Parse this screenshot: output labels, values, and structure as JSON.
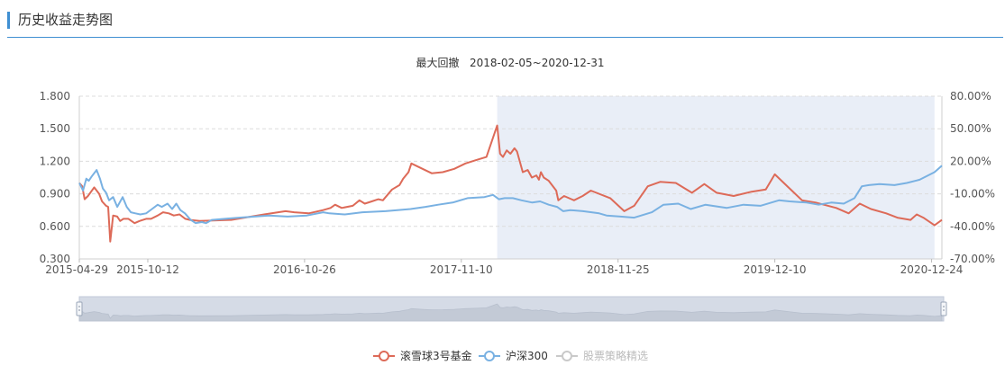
{
  "page": {
    "title": "历史收益走势图"
  },
  "colors": {
    "accent": "#3f8fd2",
    "fund": "#dd6a58",
    "index": "#79b1e2",
    "shade": "#e9eef7",
    "disabled": "#c9c9c9"
  },
  "chart_data": {
    "type": "line",
    "title": "最大回撤   2018-02-05~2020-12-31",
    "drawdown_range": [
      "2018-02-05",
      "2020-12-31"
    ],
    "x_ticks": [
      "2015-04-29",
      "2015-10-12",
      "2016-10-26",
      "2017-11-10",
      "2018-11-25",
      "2019-12-10",
      "2020-12-24"
    ],
    "y_left": {
      "min": 0.3,
      "max": 1.8,
      "ticks": [
        "0.300",
        "0.600",
        "0.900",
        "1.200",
        "1.500",
        "1.800"
      ]
    },
    "y_right": {
      "min": -70,
      "max": 80,
      "ticks": [
        "-70.00%",
        "-40.00%",
        "-10.00%",
        "20.00%",
        "50.00%",
        "80.00%"
      ]
    },
    "grid": true,
    "legend_position": "bottom",
    "series": [
      {
        "name": "滚雪球3号基金",
        "axis": "left",
        "points": [
          [
            "2015-04-29",
            1.0
          ],
          [
            "2015-05-06",
            0.97
          ],
          [
            "2015-05-12",
            0.85
          ],
          [
            "2015-05-20",
            0.88
          ],
          [
            "2015-06-04",
            0.96
          ],
          [
            "2015-06-16",
            0.9
          ],
          [
            "2015-06-23",
            0.83
          ],
          [
            "2015-07-03",
            0.79
          ],
          [
            "2015-07-08",
            0.78
          ],
          [
            "2015-07-13",
            0.46
          ],
          [
            "2015-07-20",
            0.7
          ],
          [
            "2015-07-30",
            0.69
          ],
          [
            "2015-08-06",
            0.65
          ],
          [
            "2015-08-14",
            0.67
          ],
          [
            "2015-08-26",
            0.67
          ],
          [
            "2015-09-10",
            0.63
          ],
          [
            "2015-09-22",
            0.65
          ],
          [
            "2015-10-08",
            0.67
          ],
          [
            "2015-10-20",
            0.67
          ],
          [
            "2015-11-05",
            0.7
          ],
          [
            "2015-11-18",
            0.73
          ],
          [
            "2015-12-02",
            0.72
          ],
          [
            "2015-12-14",
            0.7
          ],
          [
            "2015-12-28",
            0.71
          ],
          [
            "2016-01-11",
            0.67
          ],
          [
            "2016-01-22",
            0.66
          ],
          [
            "2016-02-15",
            0.65
          ],
          [
            "2016-05-01",
            0.66
          ],
          [
            "2016-07-20",
            0.71
          ],
          [
            "2016-09-10",
            0.74
          ],
          [
            "2016-10-01",
            0.73
          ],
          [
            "2016-11-05",
            0.72
          ],
          [
            "2016-12-10",
            0.75
          ],
          [
            "2016-12-28",
            0.77
          ],
          [
            "2017-01-08",
            0.8
          ],
          [
            "2017-01-24",
            0.77
          ],
          [
            "2017-02-20",
            0.79
          ],
          [
            "2017-03-08",
            0.84
          ],
          [
            "2017-03-21",
            0.81
          ],
          [
            "2017-04-07",
            0.83
          ],
          [
            "2017-04-23",
            0.85
          ],
          [
            "2017-05-04",
            0.84
          ],
          [
            "2017-05-26",
            0.94
          ],
          [
            "2017-06-13",
            0.98
          ],
          [
            "2017-06-22",
            1.04
          ],
          [
            "2017-07-05",
            1.1
          ],
          [
            "2017-07-12",
            1.18
          ],
          [
            "2017-08-08",
            1.13
          ],
          [
            "2017-08-30",
            1.09
          ],
          [
            "2017-09-26",
            1.1
          ],
          [
            "2017-10-24",
            1.13
          ],
          [
            "2017-11-20",
            1.18
          ],
          [
            "2017-12-15",
            1.21
          ],
          [
            "2018-01-10",
            1.24
          ],
          [
            "2018-02-05",
            1.53
          ],
          [
            "2018-02-12",
            1.27
          ],
          [
            "2018-02-19",
            1.24
          ],
          [
            "2018-02-28",
            1.3
          ],
          [
            "2018-03-09",
            1.27
          ],
          [
            "2018-03-19",
            1.32
          ],
          [
            "2018-03-25",
            1.29
          ],
          [
            "2018-04-08",
            1.1
          ],
          [
            "2018-04-20",
            1.12
          ],
          [
            "2018-04-30",
            1.05
          ],
          [
            "2018-05-11",
            1.07
          ],
          [
            "2018-05-17",
            1.03
          ],
          [
            "2018-05-22",
            1.1
          ],
          [
            "2018-05-29",
            1.05
          ],
          [
            "2018-06-10",
            1.02
          ],
          [
            "2018-06-28",
            0.93
          ],
          [
            "2018-07-03",
            0.84
          ],
          [
            "2018-07-17",
            0.88
          ],
          [
            "2018-08-10",
            0.84
          ],
          [
            "2018-08-31",
            0.88
          ],
          [
            "2018-09-20",
            0.93
          ],
          [
            "2018-11-06",
            0.86
          ],
          [
            "2018-12-10",
            0.74
          ],
          [
            "2019-01-03",
            0.79
          ],
          [
            "2019-02-05",
            0.97
          ],
          [
            "2019-03-07",
            1.01
          ],
          [
            "2019-04-14",
            1.0
          ],
          [
            "2019-05-23",
            0.91
          ],
          [
            "2019-06-22",
            0.99
          ],
          [
            "2019-07-22",
            0.91
          ],
          [
            "2019-09-01",
            0.88
          ],
          [
            "2019-10-15",
            0.92
          ],
          [
            "2019-11-18",
            0.94
          ],
          [
            "2019-12-10",
            1.08
          ],
          [
            "2020-01-12",
            0.96
          ],
          [
            "2020-02-14",
            0.84
          ],
          [
            "2020-03-18",
            0.82
          ],
          [
            "2020-05-07",
            0.77
          ],
          [
            "2020-06-06",
            0.72
          ],
          [
            "2020-07-03",
            0.81
          ],
          [
            "2020-07-30",
            0.76
          ],
          [
            "2020-09-05",
            0.72
          ],
          [
            "2020-10-02",
            0.68
          ],
          [
            "2020-11-03",
            0.66
          ],
          [
            "2020-11-18",
            0.71
          ],
          [
            "2020-12-04",
            0.68
          ],
          [
            "2020-12-31",
            0.61
          ],
          [
            "2021-01-18",
            0.66
          ]
        ]
      },
      {
        "name": "沪深300",
        "axis": "left",
        "points": [
          [
            "2015-04-29",
            1.0
          ],
          [
            "2015-05-08",
            0.93
          ],
          [
            "2015-05-16",
            1.04
          ],
          [
            "2015-05-22",
            1.02
          ],
          [
            "2015-05-29",
            1.06
          ],
          [
            "2015-06-10",
            1.12
          ],
          [
            "2015-06-18",
            1.04
          ],
          [
            "2015-06-25",
            0.95
          ],
          [
            "2015-07-03",
            0.91
          ],
          [
            "2015-07-10",
            0.84
          ],
          [
            "2015-07-20",
            0.87
          ],
          [
            "2015-07-30",
            0.78
          ],
          [
            "2015-08-12",
            0.87
          ],
          [
            "2015-08-22",
            0.78
          ],
          [
            "2015-09-01",
            0.73
          ],
          [
            "2015-09-12",
            0.72
          ],
          [
            "2015-09-24",
            0.71
          ],
          [
            "2015-10-08",
            0.72
          ],
          [
            "2015-10-22",
            0.76
          ],
          [
            "2015-11-05",
            0.8
          ],
          [
            "2015-11-15",
            0.78
          ],
          [
            "2015-11-29",
            0.81
          ],
          [
            "2015-12-10",
            0.76
          ],
          [
            "2015-12-20",
            0.81
          ],
          [
            "2015-12-30",
            0.75
          ],
          [
            "2016-01-10",
            0.72
          ],
          [
            "2016-01-24",
            0.66
          ],
          [
            "2016-02-05",
            0.63
          ],
          [
            "2016-02-20",
            0.64
          ],
          [
            "2016-03-01",
            0.63
          ],
          [
            "2016-03-15",
            0.66
          ],
          [
            "2016-05-20",
            0.68
          ],
          [
            "2016-08-01",
            0.7
          ],
          [
            "2016-09-15",
            0.69
          ],
          [
            "2016-11-01",
            0.7
          ],
          [
            "2016-12-10",
            0.73
          ],
          [
            "2016-12-25",
            0.72
          ],
          [
            "2017-02-01",
            0.71
          ],
          [
            "2017-03-15",
            0.73
          ],
          [
            "2017-05-10",
            0.74
          ],
          [
            "2017-07-10",
            0.76
          ],
          [
            "2017-08-15",
            0.78
          ],
          [
            "2017-09-15",
            0.8
          ],
          [
            "2017-10-20",
            0.82
          ],
          [
            "2017-11-25",
            0.86
          ],
          [
            "2018-01-05",
            0.87
          ],
          [
            "2018-01-26",
            0.89
          ],
          [
            "2018-02-09",
            0.85
          ],
          [
            "2018-02-23",
            0.86
          ],
          [
            "2018-03-15",
            0.86
          ],
          [
            "2018-04-05",
            0.84
          ],
          [
            "2018-05-01",
            0.82
          ],
          [
            "2018-05-20",
            0.83
          ],
          [
            "2018-06-10",
            0.8
          ],
          [
            "2018-06-30",
            0.78
          ],
          [
            "2018-07-15",
            0.74
          ],
          [
            "2018-08-01",
            0.75
          ],
          [
            "2018-09-01",
            0.74
          ],
          [
            "2018-10-10",
            0.72
          ],
          [
            "2018-10-28",
            0.7
          ],
          [
            "2018-12-01",
            0.69
          ],
          [
            "2019-01-03",
            0.68
          ],
          [
            "2019-02-15",
            0.73
          ],
          [
            "2019-03-15",
            0.8
          ],
          [
            "2019-04-20",
            0.81
          ],
          [
            "2019-05-20",
            0.76
          ],
          [
            "2019-06-25",
            0.8
          ],
          [
            "2019-08-15",
            0.77
          ],
          [
            "2019-09-25",
            0.8
          ],
          [
            "2019-11-05",
            0.79
          ],
          [
            "2019-12-20",
            0.84
          ],
          [
            "2020-01-15",
            0.83
          ],
          [
            "2020-02-25",
            0.82
          ],
          [
            "2020-03-25",
            0.8
          ],
          [
            "2020-04-25",
            0.82
          ],
          [
            "2020-05-25",
            0.81
          ],
          [
            "2020-06-20",
            0.86
          ],
          [
            "2020-07-08",
            0.97
          ],
          [
            "2020-07-25",
            0.98
          ],
          [
            "2020-08-20",
            0.99
          ],
          [
            "2020-09-25",
            0.98
          ],
          [
            "2020-10-25",
            1.0
          ],
          [
            "2020-11-25",
            1.03
          ],
          [
            "2020-12-31",
            1.1
          ],
          [
            "2021-01-18",
            1.16
          ]
        ]
      }
    ],
    "legend": [
      {
        "name": "滚雪球3号基金",
        "active": true
      },
      {
        "name": "沪深300",
        "active": true
      },
      {
        "name": "股票策略精选",
        "active": false
      }
    ]
  }
}
